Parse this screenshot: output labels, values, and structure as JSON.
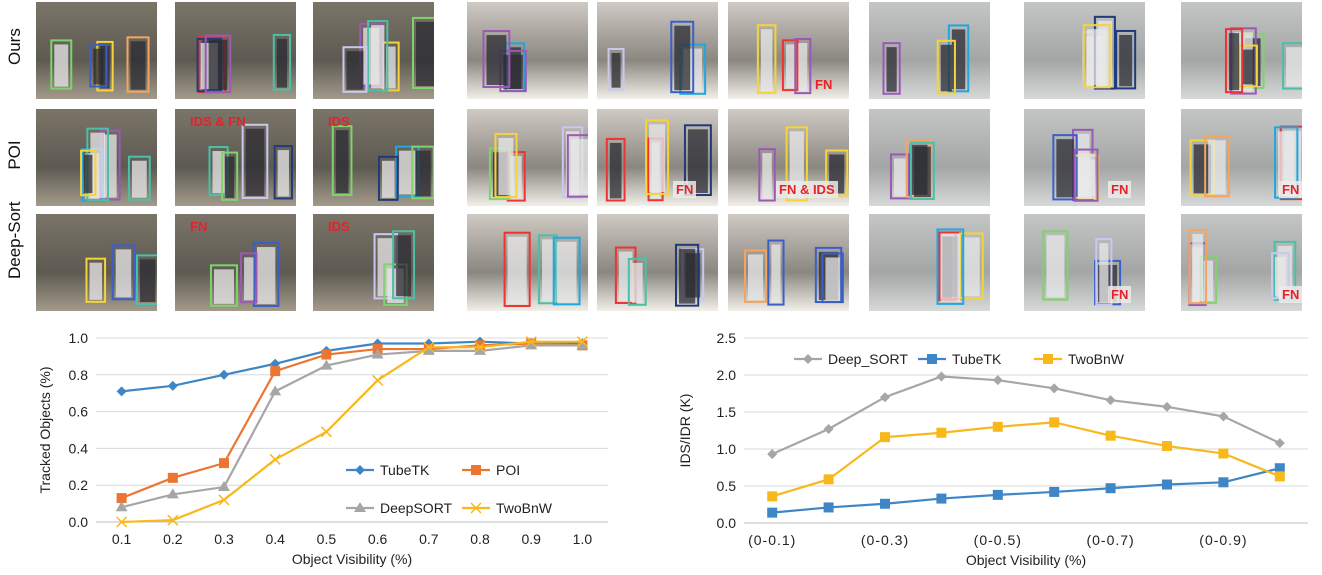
{
  "rows": [
    "Ours",
    "POI",
    "Deep-Sort"
  ],
  "colors": {
    "tubetk": "#3f86c6",
    "poi": "#ec7532",
    "deepsort": "#a6a6a6",
    "twobnw": "#f8b81c",
    "tag_red": "#e8202a"
  },
  "tags": {
    "g1_poi_2": "IDS & FN",
    "g1_poi_3": "IDS",
    "g1_ds_2": "FN",
    "g1_ds_3": "IDS",
    "g2_ours_3": "FN",
    "g2_poi_2": "FN",
    "g2_poi_3": "FN & IDS",
    "g3_poi_2": "FN",
    "g3_poi_3": "FN",
    "g3_ds_2": "FN",
    "g3_ds_3": "FN"
  },
  "chart_data": [
    {
      "type": "line",
      "categories": [
        "0.1",
        "0.2",
        "0.3",
        "0.4",
        "0.5",
        "0.6",
        "0.7",
        "0.8",
        "0.9",
        "1.0"
      ],
      "series": [
        {
          "name": "TubeTK",
          "color": "#3f86c6",
          "marker": "diamond",
          "values": [
            0.71,
            0.74,
            0.8,
            0.86,
            0.93,
            0.97,
            0.97,
            0.98,
            0.97,
            0.97
          ]
        },
        {
          "name": "POI",
          "color": "#ec7532",
          "marker": "square",
          "values": [
            0.13,
            0.24,
            0.32,
            0.82,
            0.91,
            0.94,
            0.94,
            0.96,
            0.97,
            0.96
          ]
        },
        {
          "name": "DeepSORT",
          "color": "#a6a6a6",
          "marker": "triangle",
          "values": [
            0.08,
            0.15,
            0.19,
            0.71,
            0.85,
            0.91,
            0.93,
            0.93,
            0.96,
            0.96
          ]
        },
        {
          "name": "TwoBnW",
          "color": "#f8b81c",
          "marker": "x",
          "values": [
            0.0,
            0.01,
            0.12,
            0.34,
            0.49,
            0.77,
            0.95,
            0.95,
            0.98,
            0.98
          ]
        }
      ],
      "xlabel": "Object Visibility (%)",
      "ylabel": "Tracked Objects (%)",
      "ylim": [
        0,
        1.0
      ],
      "yticks": [
        "0.0",
        "0.2",
        "0.4",
        "0.6",
        "0.8",
        "1.0"
      ],
      "grid": true,
      "legend": "bottom-right"
    },
    {
      "type": "line",
      "categories": [
        "(0-0.1)",
        "",
        "(0-0.3)",
        "",
        "(0-0.5)",
        "",
        "(0-0.7)",
        "",
        "(0-0.9)",
        ""
      ],
      "series": [
        {
          "name": "Deep_SORT",
          "color": "#a6a6a6",
          "marker": "diamond",
          "values": [
            0.93,
            1.27,
            1.7,
            1.98,
            1.93,
            1.82,
            1.66,
            1.57,
            1.44,
            1.08
          ]
        },
        {
          "name": "TubeTK",
          "color": "#3f86c6",
          "marker": "square",
          "values": [
            0.14,
            0.21,
            0.26,
            0.33,
            0.38,
            0.42,
            0.47,
            0.52,
            0.55,
            0.74
          ]
        },
        {
          "name": "TwoBnW",
          "color": "#f8b81c",
          "marker": "square",
          "values": [
            0.36,
            0.59,
            1.16,
            1.22,
            1.3,
            1.36,
            1.18,
            1.04,
            0.94,
            0.63
          ]
        }
      ],
      "xlabel": "Object Visibility (%)",
      "ylabel": "IDS/IDR (K)",
      "ylim": [
        0,
        2.5
      ],
      "yticks": [
        "0.0",
        "0.5",
        "1.0",
        "1.5",
        "2.0",
        "2.5"
      ],
      "grid": true,
      "legend": "top"
    }
  ]
}
